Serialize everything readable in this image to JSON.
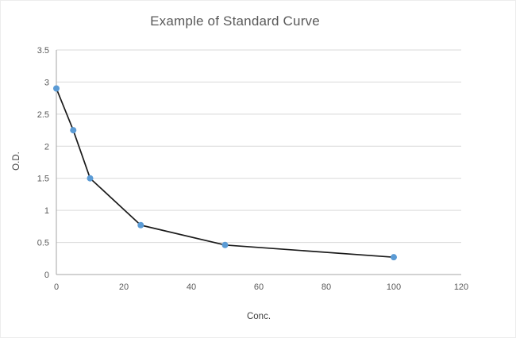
{
  "chart_data": {
    "type": "line",
    "title": "Example of Standard Curve",
    "xlabel": "Conc.",
    "ylabel": "O.D.",
    "x": [
      0,
      5,
      10,
      25,
      50,
      100
    ],
    "y": [
      2.9,
      2.25,
      1.5,
      0.77,
      0.46,
      0.27
    ],
    "xlim": [
      0,
      120
    ],
    "ylim": [
      0,
      3.5
    ],
    "x_ticks": [
      0,
      20,
      40,
      60,
      80,
      100,
      120
    ],
    "y_ticks": [
      0,
      0.5,
      1,
      1.5,
      2,
      2.5,
      3,
      3.5
    ],
    "grid": "horizontal",
    "legend": "none",
    "line_color": "#1a1a1a",
    "marker_color": "#5b9bd5",
    "gridline_color": "#d9d9d9",
    "axis_color": "#a6a6a6"
  }
}
